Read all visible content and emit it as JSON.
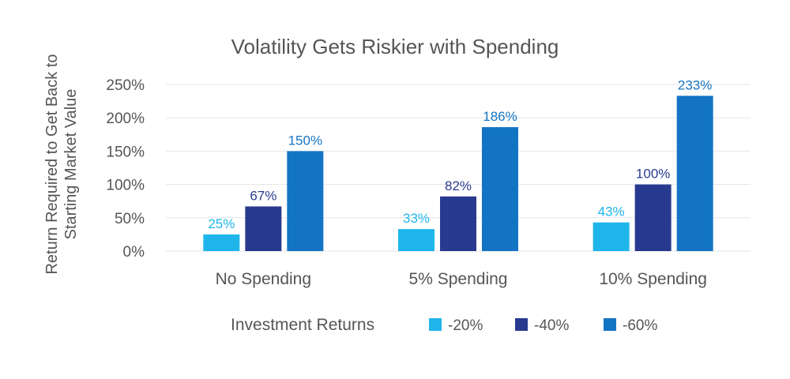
{
  "chart_data": {
    "type": "bar",
    "title": "Volatility Gets Riskier with Spending",
    "ylabel_lines": [
      "Return Required to Get Back to",
      "Starting Market Value"
    ],
    "categories": [
      "No Spending",
      "5% Spending",
      "10% Spending"
    ],
    "series": [
      {
        "name": "-20%",
        "color": "#1fb5ea",
        "values": [
          25,
          33,
          43
        ],
        "labels": [
          "25%",
          "33%",
          "43%"
        ]
      },
      {
        "name": "-40%",
        "color": "#283a8f",
        "values": [
          67,
          82,
          100
        ],
        "labels": [
          "67%",
          "82%",
          "100%"
        ]
      },
      {
        "name": "-60%",
        "color": "#1474c4",
        "values": [
          150,
          186,
          233
        ],
        "labels": [
          "150%",
          "186%",
          "233%"
        ]
      }
    ],
    "ylim": [
      0,
      250
    ],
    "yticks": [
      0,
      50,
      100,
      150,
      200,
      250
    ],
    "ytick_labels": [
      "0%",
      "50%",
      "100%",
      "150%",
      "200%",
      "250%"
    ],
    "legend_title": "Investment Returns",
    "legend_position": "bottom",
    "grid": true
  }
}
